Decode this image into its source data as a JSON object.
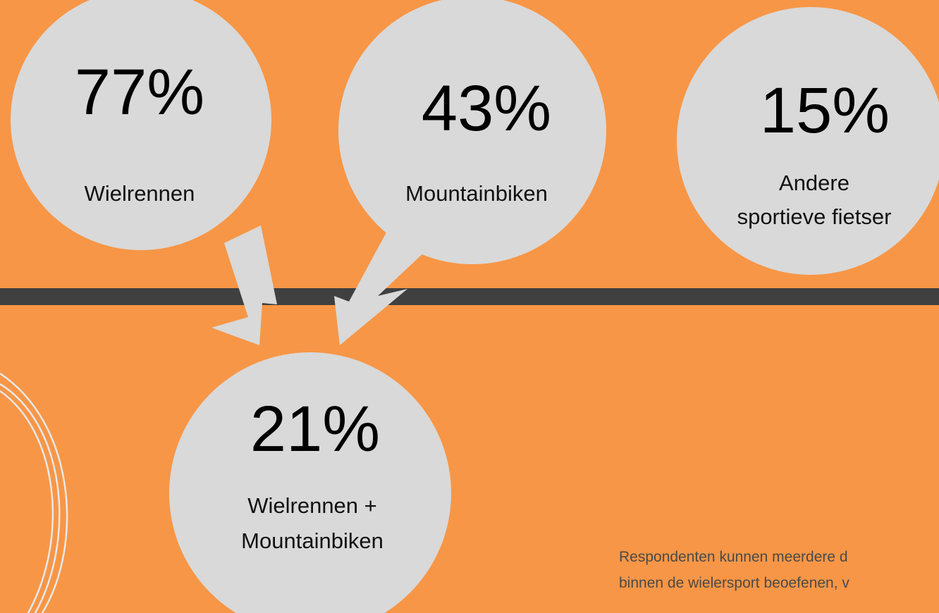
{
  "nodes": [
    {
      "value": "77%",
      "label": [
        "Wielrennen"
      ]
    },
    {
      "value": "43%",
      "label": [
        "Mountainbiken"
      ]
    },
    {
      "value": "15%",
      "label": [
        "Andere",
        "sportieve fietser"
      ]
    },
    {
      "value": "21%",
      "label": [
        "Wielrennen +",
        "Mountainbiken"
      ]
    }
  ],
  "footnote": [
    "Respondenten kunnen meerdere d",
    "binnen de wielersport beoefenen, v"
  ]
}
